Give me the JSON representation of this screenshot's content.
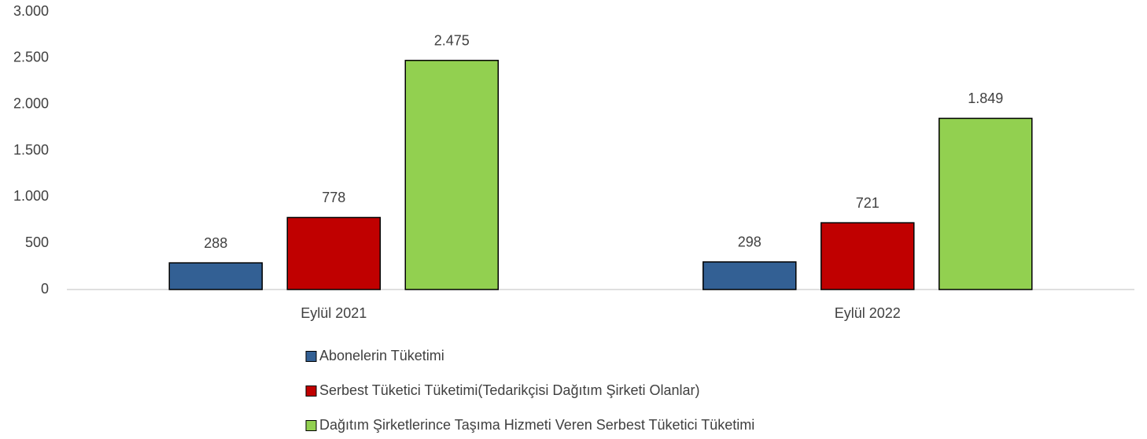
{
  "chart_data": {
    "type": "bar",
    "categories": [
      "Eylül 2021",
      "Eylül 2022"
    ],
    "series": [
      {
        "name": "Abonelerin Tüketimi",
        "color": "#336094",
        "values": [
          288,
          298
        ],
        "value_labels": [
          "288",
          "298"
        ]
      },
      {
        "name": "Serbest Tüketici Tüketimi(Tedarikçisi Dağıtım Şirketi Olanlar)",
        "color": "#c00000",
        "values": [
          778,
          721
        ],
        "value_labels": [
          "778",
          "721"
        ]
      },
      {
        "name": "Dağıtım Şirketlerince Taşıma Hizmeti Veren Serbest Tüketici Tüketimi",
        "color": "#92d050",
        "values": [
          2475,
          1849
        ],
        "value_labels": [
          "2.475",
          "1.849"
        ]
      }
    ],
    "ylim": [
      0,
      3000
    ],
    "yticks": [
      0,
      500,
      {
        "value": 1000,
        "label": "1.000"
      },
      {
        "value": 1500,
        "label": "1.500"
      },
      {
        "value": 2000,
        "label": "2.000"
      },
      {
        "value": 2500,
        "label": "2.500"
      },
      {
        "value": 3000,
        "label": "3.000"
      }
    ],
    "grid": false,
    "legend": "bottom"
  }
}
